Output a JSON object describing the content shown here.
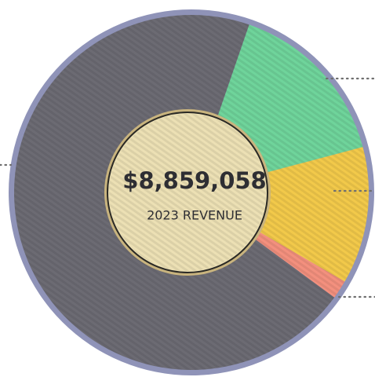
{
  "chart_data": {
    "type": "pie",
    "title": "$8,859,058",
    "subtitle": "2023 REVENUE",
    "categories": [
      null,
      null,
      null,
      null
    ],
    "values": [
      15.6,
      12.5,
      1.7,
      70.2
    ],
    "colors": [
      "#6fd49b",
      "#f2c94a",
      "#f3907e",
      "#6c6b73"
    ]
  }
}
